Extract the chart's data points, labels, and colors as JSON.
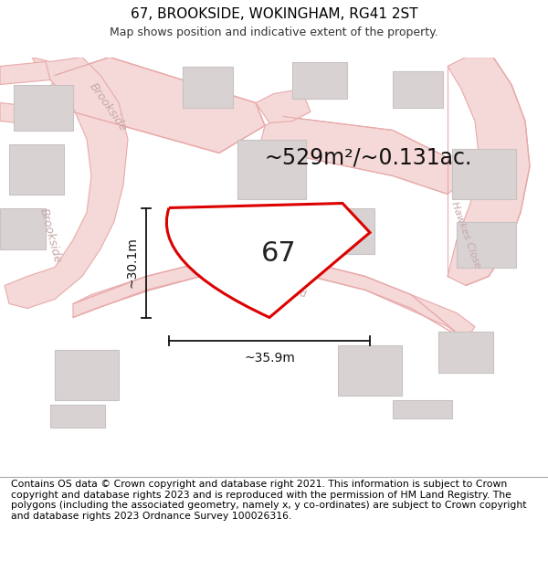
{
  "title": "67, BROOKSIDE, WOKINGHAM, RG41 2ST",
  "subtitle": "Map shows position and indicative extent of the property.",
  "area_text": "~529m²/~0.131ac.",
  "label_67": "67",
  "dim_width": "~35.9m",
  "dim_height": "~30.1m",
  "footer": "Contains OS data © Crown copyright and database right 2021. This information is subject to Crown copyright and database rights 2023 and is reproduced with the permission of HM Land Registry. The polygons (including the associated geometry, namely x, y co-ordinates) are subject to Crown copyright and database rights 2023 Ordnance Survey 100026316.",
  "map_bg": "#f7f2f2",
  "road_fill": "#f5d8d8",
  "road_edge": "#e8aaaa",
  "building_fill": "#d8d2d2",
  "building_edge": "#c8c2c2",
  "property_edge": "#dd0000",
  "property_fill": "#ffffff",
  "dim_color": "#111111",
  "road_label_color": "#c8a8a8",
  "title_fontsize": 11,
  "subtitle_fontsize": 9,
  "area_fontsize": 17,
  "label_fontsize": 22,
  "footer_fontsize": 7.8,
  "dim_fontsize": 10,
  "road_label_fontsize": 9
}
